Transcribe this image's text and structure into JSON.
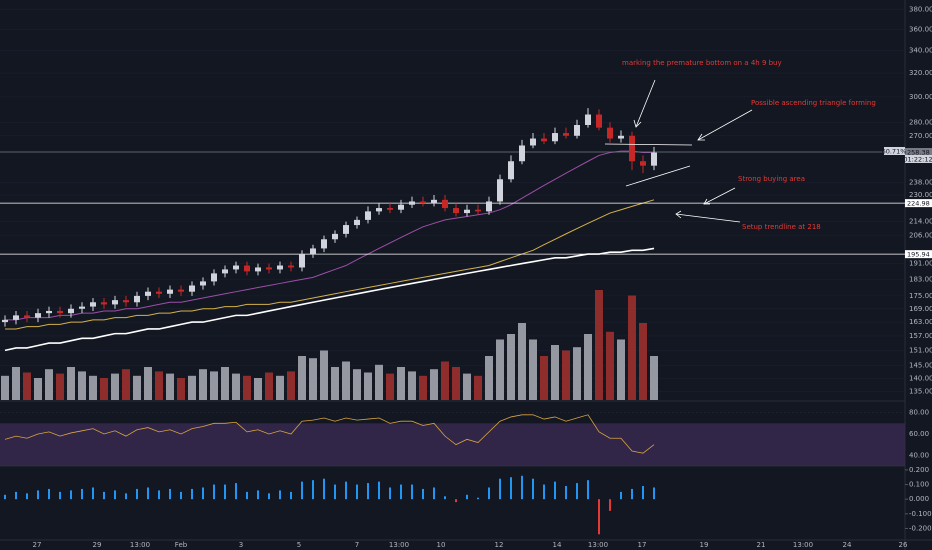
{
  "chart_data": {
    "type": "candlestick",
    "log_scale": true,
    "ylim": [
      132,
      390
    ],
    "yticks": [
      {
        "value": 380,
        "label": "380.00"
      },
      {
        "value": 360,
        "label": "360.00"
      },
      {
        "value": 340,
        "label": "340.00"
      },
      {
        "value": 320,
        "label": "320.00"
      },
      {
        "value": 300,
        "label": "300.00"
      },
      {
        "value": 280,
        "label": "280.00"
      },
      {
        "value": 270,
        "label": "270.00"
      },
      {
        "value": 238,
        "label": "238.00"
      },
      {
        "value": 230,
        "label": "230.00"
      },
      {
        "value": 214,
        "label": "214.00"
      },
      {
        "value": 206,
        "label": "206.00"
      },
      {
        "value": 191,
        "label": "191.00"
      },
      {
        "value": 183,
        "label": "183.00"
      },
      {
        "value": 175,
        "label": "175.00"
      },
      {
        "value": 169,
        "label": "169.00"
      },
      {
        "value": 163,
        "label": "163.00"
      },
      {
        "value": 157,
        "label": "157.00"
      },
      {
        "value": 151,
        "label": "151.00"
      },
      {
        "value": 145,
        "label": "145.00"
      },
      {
        "value": 140,
        "label": "140.00"
      },
      {
        "value": 135,
        "label": "135.00"
      }
    ],
    "up_color": "#d1d4dc",
    "down_color": "#c62828",
    "open": [
      163,
      164,
      166,
      165,
      167,
      168,
      167,
      169,
      170,
      172,
      171,
      173,
      172,
      175,
      177,
      176,
      178,
      177,
      180,
      182,
      186,
      188,
      190,
      187,
      189,
      188,
      190,
      189,
      196,
      199,
      204,
      207,
      212,
      215,
      220,
      222,
      221,
      224,
      226,
      225,
      227,
      222,
      219,
      221,
      220,
      226,
      240,
      252,
      263,
      268,
      266,
      272,
      270,
      278,
      286,
      276,
      268,
      270,
      252,
      249
    ],
    "high": [
      166,
      168,
      168,
      169,
      170,
      170,
      171,
      172,
      174,
      174,
      175,
      175,
      177,
      179,
      179,
      180,
      180,
      182,
      184,
      188,
      190,
      192,
      192,
      191,
      191,
      192,
      192,
      198,
      201,
      206,
      209,
      214,
      217,
      223,
      225,
      225,
      227,
      229,
      229,
      230,
      230,
      225,
      224,
      224,
      229,
      243,
      256,
      267,
      272,
      272,
      276,
      276,
      282,
      291,
      290,
      280,
      274,
      273,
      256,
      262
    ],
    "low": [
      161,
      162,
      163,
      163,
      165,
      165,
      165,
      167,
      168,
      169,
      169,
      170,
      170,
      173,
      174,
      174,
      175,
      175,
      178,
      180,
      184,
      186,
      185,
      185,
      186,
      186,
      187,
      187,
      194,
      197,
      202,
      205,
      210,
      213,
      218,
      219,
      219,
      222,
      223,
      223,
      220,
      217,
      217,
      218,
      218,
      224,
      238,
      250,
      261,
      264,
      264,
      268,
      268,
      276,
      274,
      265,
      265,
      246,
      244,
      246
    ],
    "close": [
      164,
      166,
      165,
      167,
      168,
      167,
      169,
      170,
      172,
      171,
      173,
      172,
      175,
      177,
      176,
      178,
      177,
      180,
      182,
      186,
      188,
      190,
      187,
      189,
      188,
      190,
      189,
      196,
      199,
      204,
      207,
      212,
      215,
      220,
      222,
      221,
      224,
      226,
      225,
      227,
      222,
      219,
      221,
      220,
      226,
      240,
      252,
      263,
      268,
      266,
      272,
      270,
      278,
      286,
      276,
      268,
      270,
      252,
      249,
      258
    ],
    "volume": [
      22,
      30,
      25,
      20,
      28,
      24,
      30,
      26,
      22,
      20,
      24,
      28,
      22,
      30,
      26,
      24,
      20,
      22,
      28,
      26,
      30,
      24,
      22,
      20,
      25,
      22,
      26,
      40,
      38,
      45,
      30,
      35,
      28,
      25,
      32,
      24,
      30,
      26,
      22,
      28,
      35,
      30,
      24,
      22,
      40,
      55,
      60,
      70,
      55,
      40,
      50,
      45,
      48,
      60,
      100,
      62,
      55,
      95,
      70,
      40
    ],
    "moving_averages": [
      {
        "color": "#ffffff",
        "values": [
          151,
          152,
          152,
          153,
          154,
          154,
          155,
          156,
          156,
          157,
          158,
          158,
          159,
          160,
          160,
          161,
          162,
          163,
          163,
          164,
          165,
          166,
          166,
          167,
          168,
          169,
          170,
          171,
          172,
          173,
          174,
          175,
          176,
          177,
          178,
          179,
          180,
          181,
          182,
          183,
          184,
          185,
          186,
          187,
          188,
          189,
          190,
          191,
          192,
          193,
          194,
          194,
          195,
          196,
          196,
          197,
          197,
          198,
          198,
          199
        ]
      },
      {
        "color": "#d4b24a",
        "values": [
          160,
          160,
          161,
          161,
          162,
          162,
          163,
          163,
          164,
          164,
          165,
          165,
          166,
          166,
          167,
          167,
          168,
          168,
          169,
          169,
          170,
          170,
          171,
          171,
          171,
          172,
          172,
          173,
          174,
          175,
          176,
          177,
          178,
          179,
          180,
          181,
          182,
          183,
          184,
          185,
          186,
          187,
          188,
          189,
          190,
          192,
          194,
          196,
          198,
          201,
          204,
          207,
          210,
          213,
          216,
          219,
          221,
          223,
          225,
          227
        ]
      },
      {
        "color": "#9c4fa8",
        "values": [
          164,
          164,
          165,
          165,
          165,
          166,
          166,
          167,
          167,
          168,
          168,
          169,
          169,
          170,
          171,
          172,
          172,
          173,
          174,
          175,
          176,
          177,
          178,
          179,
          180,
          181,
          182,
          183,
          184,
          186,
          188,
          190,
          193,
          196,
          199,
          202,
          205,
          208,
          211,
          213,
          215,
          216,
          217,
          218,
          219,
          221,
          224,
          228,
          232,
          236,
          240,
          244,
          248,
          252,
          256,
          258,
          259,
          259,
          258,
          258
        ]
      }
    ],
    "hlines": [
      {
        "value": 258.38,
        "color": "#787b86"
      },
      {
        "value": 224.98,
        "color": "#ffffff"
      },
      {
        "value": 195.94,
        "color": "#ffffff"
      }
    ],
    "price_tags": [
      "60.71%",
      "01:22:12"
    ],
    "rsi": {
      "values": [
        55,
        58,
        56,
        60,
        62,
        58,
        61,
        63,
        65,
        60,
        63,
        58,
        64,
        66,
        62,
        64,
        60,
        65,
        67,
        70,
        70,
        71,
        62,
        64,
        60,
        63,
        60,
        72,
        73,
        75,
        72,
        75,
        73,
        74,
        75,
        70,
        72,
        72,
        68,
        70,
        58,
        50,
        55,
        52,
        62,
        72,
        76,
        78,
        78,
        74,
        76,
        72,
        75,
        78,
        62,
        56,
        56,
        44,
        42,
        50
      ],
      "color": "#d9a441",
      "band": [
        30,
        70
      ],
      "band_color": "#3b2a52",
      "ylim": [
        30,
        90
      ],
      "yticks": [
        {
          "value": 80,
          "label": "80.00"
        },
        {
          "value": 60,
          "label": "60.00"
        },
        {
          "value": 40,
          "label": "40.00"
        }
      ]
    },
    "macd": {
      "values": [
        0.03,
        0.05,
        0.04,
        0.06,
        0.07,
        0.05,
        0.06,
        0.07,
        0.08,
        0.05,
        0.06,
        0.04,
        0.07,
        0.08,
        0.06,
        0.07,
        0.05,
        0.07,
        0.08,
        0.1,
        0.1,
        0.11,
        0.05,
        0.06,
        0.04,
        0.06,
        0.05,
        0.12,
        0.13,
        0.14,
        0.1,
        0.12,
        0.1,
        0.11,
        0.12,
        0.08,
        0.1,
        0.1,
        0.07,
        0.08,
        0.02,
        -0.02,
        0.03,
        0.01,
        0.08,
        0.14,
        0.15,
        0.16,
        0.14,
        0.1,
        0.12,
        0.09,
        0.11,
        0.13,
        -0.24,
        -0.08,
        0.05,
        0.07,
        0.09,
        0.08
      ],
      "pos_color": "#2196f3",
      "neg_color": "#e53935",
      "ylim": [
        -0.32,
        0.22
      ],
      "yticks": [
        {
          "value": 0.2,
          "label": "0.200"
        },
        {
          "value": 0.1,
          "label": "0.100"
        },
        {
          "value": 0,
          "label": "0.000"
        },
        {
          "value": -0.1,
          "label": "-0.100"
        },
        {
          "value": -0.2,
          "label": "-0.200"
        }
      ]
    },
    "x_labels": [
      "27",
      "29",
      "13:00",
      "Feb",
      "3",
      "5",
      "7",
      "13:00",
      "10",
      "12",
      "14",
      "13:00",
      "17",
      "19",
      "21",
      "13:00",
      "24",
      "26"
    ],
    "annotations": [
      "marking the premature bottom on a 4h 9 buy",
      "Possible ascending triangle forming",
      "Strong buying area",
      "Setup trendline at 218"
    ]
  }
}
